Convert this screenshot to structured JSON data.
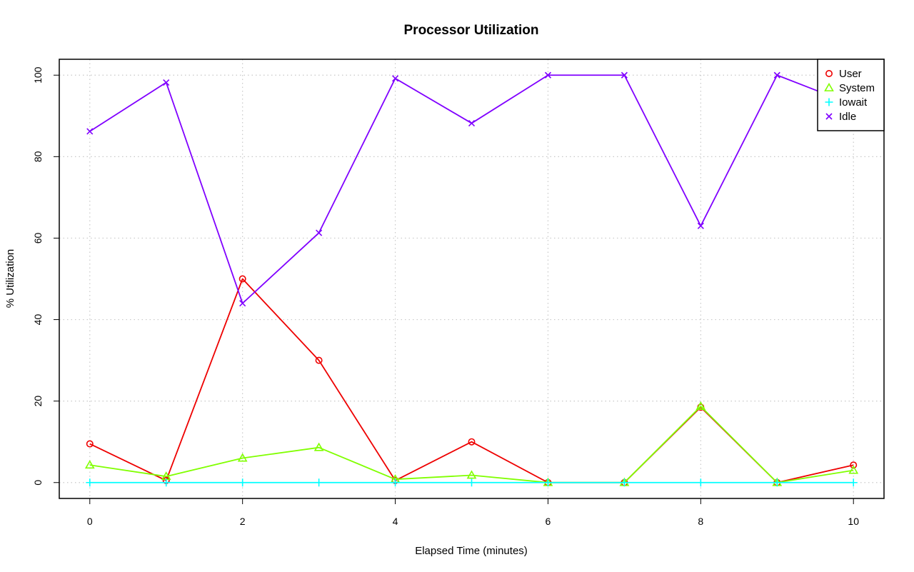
{
  "chart_data": {
    "type": "line",
    "title": "Processor Utilization",
    "xlabel": "Elapsed Time (minutes)",
    "ylabel": "% Utilization",
    "x": [
      0,
      1,
      2,
      3,
      4,
      5,
      6,
      7,
      8,
      9,
      10
    ],
    "xlim": [
      -0.4,
      10.4
    ],
    "ylim": [
      -3.9,
      103.9
    ],
    "x_ticks": [
      "0",
      "2",
      "4",
      "6",
      "8",
      "10"
    ],
    "y_ticks": [
      "0",
      "20",
      "40",
      "60",
      "80",
      "100"
    ],
    "grid": true,
    "legend_position": "top-right",
    "series": [
      {
        "name": "User",
        "color": "#ee0000",
        "marker": "circle",
        "values": [
          9.5,
          0.5,
          50,
          30,
          0.5,
          10,
          0,
          0,
          18.5,
          0,
          4.3
        ]
      },
      {
        "name": "System",
        "color": "#80ff00",
        "marker": "triangle",
        "values": [
          4.3,
          1.5,
          6,
          8.6,
          0.8,
          1.8,
          0,
          0,
          18.7,
          0,
          3
        ]
      },
      {
        "name": "Iowait",
        "color": "#00ffff",
        "marker": "plus",
        "values": [
          0,
          0,
          0,
          0,
          0,
          0,
          0,
          0,
          0,
          0,
          0
        ]
      },
      {
        "name": "Idle",
        "color": "#8000ff",
        "marker": "x",
        "values": [
          86.2,
          98.2,
          44,
          61.3,
          99.2,
          88.2,
          100,
          100,
          63,
          100,
          92.7
        ]
      }
    ]
  }
}
